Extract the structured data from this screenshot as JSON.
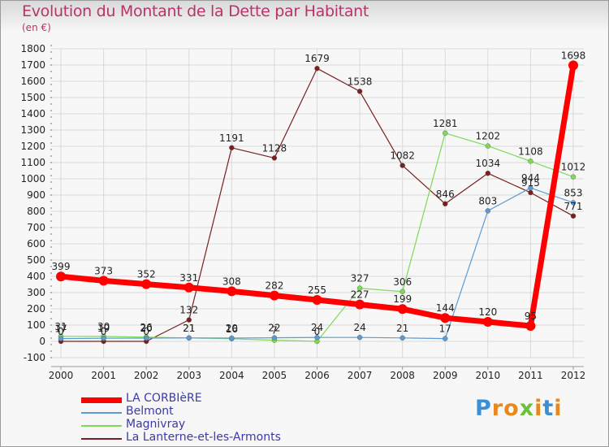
{
  "title": "Evolution du Montant de la Dette par Habitant",
  "subtitle": "(en €)",
  "logo": {
    "letters": [
      "P",
      "r",
      "o",
      "x",
      "i",
      "t",
      "i"
    ],
    "colors": [
      "#3b8fd4",
      "#e8891e",
      "#e8891e",
      "#6cc03a",
      "#e8891e",
      "#3b8fd4",
      "#e8891e"
    ]
  },
  "chart_data": {
    "type": "line",
    "x": [
      "2000",
      "2001",
      "2002",
      "2003",
      "2004",
      "2005",
      "2006",
      "2007",
      "2008",
      "2009",
      "2010",
      "2011",
      "2012"
    ],
    "ylim": [
      -100,
      1800
    ],
    "yticks": [
      -100,
      0,
      100,
      200,
      300,
      400,
      500,
      600,
      700,
      800,
      900,
      1000,
      1100,
      1200,
      1300,
      1400,
      1500,
      1600,
      1700,
      1800
    ],
    "grid": true,
    "legend_position": "bottom-left",
    "series": [
      {
        "name": "LA CORBIèRE",
        "color": "#ff0000",
        "width": 7,
        "marker": 6,
        "values": [
          399,
          373,
          352,
          331,
          308,
          282,
          255,
          227,
          199,
          144,
          120,
          95,
          1698
        ],
        "labels": [
          "399",
          "373",
          "352",
          "331",
          "308",
          "282",
          "255",
          "227",
          "199",
          "144",
          "120",
          "95",
          "1698"
        ]
      },
      {
        "name": "Belmont",
        "color": "#5b9bd5",
        "width": 1.2,
        "marker": 3,
        "values": [
          17,
          19,
          20,
          21,
          20,
          22,
          24,
          24,
          21,
          17,
          803,
          944,
          853
        ],
        "labels": [
          "17",
          "19",
          "20",
          "21",
          "20",
          "22",
          "24",
          "24",
          "21",
          "17",
          "803",
          "944",
          "853"
        ]
      },
      {
        "name": "Magnivray",
        "color": "#7ed957",
        "width": 1.2,
        "marker": 3,
        "values": [
          31,
          30,
          26,
          21,
          16,
          7,
          0,
          327,
          306,
          1281,
          1202,
          1108,
          1012
        ],
        "labels": [
          "31",
          "30",
          "26",
          "21",
          "16",
          "7",
          "0",
          "327",
          "306",
          "1281",
          "1202",
          "1108",
          "1012"
        ]
      },
      {
        "name": "La Lanterne-et-les-Armonts",
        "color": "#7a1f1f",
        "width": 1.2,
        "marker": 3,
        "values": [
          0,
          0,
          0,
          132,
          1191,
          1128,
          1679,
          1538,
          1082,
          846,
          1034,
          915,
          771
        ],
        "labels": [
          "0",
          "0",
          "0",
          "132",
          "1191",
          "1128",
          "1679",
          "1538",
          "1082",
          "846",
          "1034",
          "915",
          "771"
        ]
      }
    ]
  }
}
